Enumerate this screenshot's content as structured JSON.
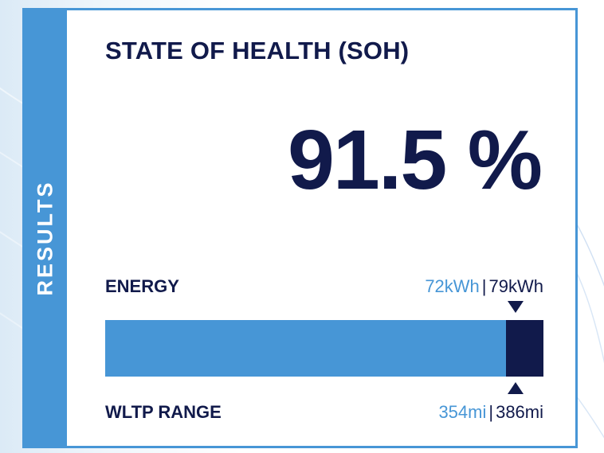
{
  "colors": {
    "primary_blue": "#4796d6",
    "navy": "#111a4b",
    "background": "#ffffff"
  },
  "sidebar": {
    "label": "RESULTS"
  },
  "card": {
    "title": "STATE OF HEALTH (SOH)",
    "soh_value": "91.5 %",
    "soh_fraction": 0.915
  },
  "energy": {
    "label": "ENERGY",
    "current": "72kWh",
    "separator": "|",
    "original": "79kWh"
  },
  "wltp_range": {
    "label": "WLTP RANGE",
    "current": "354mi",
    "separator": "|",
    "original": "386mi"
  },
  "icons": {
    "top_marker": "triangle-down-icon",
    "bottom_marker": "triangle-up-icon"
  }
}
